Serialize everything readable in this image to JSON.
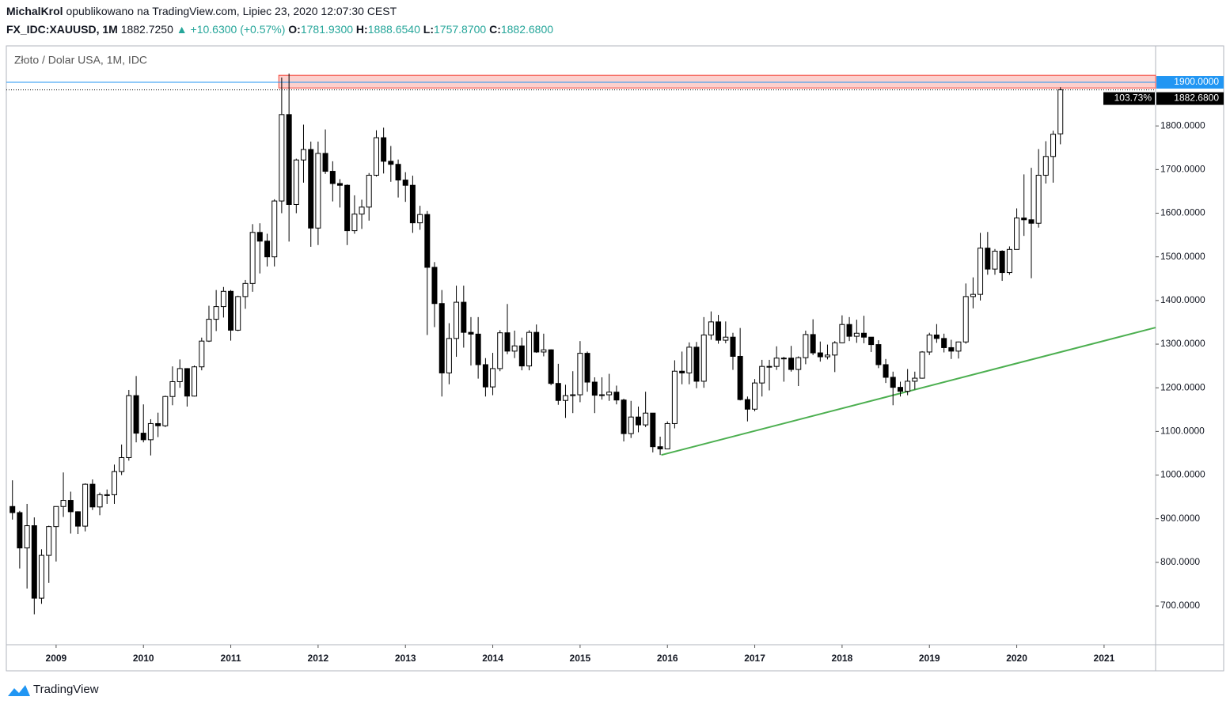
{
  "header": {
    "author": "MichalKrol",
    "published": "opublikowano na TradingView.com, Lipiec 23, 2020 12:07:30 CEST",
    "symbol": "FX_IDC:XAUUSD, 1M",
    "price": "1882.7250",
    "change": "+10.6300 (+0.57%)",
    "ohlc": [
      {
        "label": "O:",
        "value": "1781.9300"
      },
      {
        "label": "H:",
        "value": "1888.6540"
      },
      {
        "label": "L:",
        "value": "1757.8700"
      },
      {
        "label": "C:",
        "value": "1882.6800"
      }
    ]
  },
  "footer": {
    "brand": "TradingView"
  },
  "chart_data": {
    "type": "candlestick",
    "title": "Złoto / Dolar USA, 1M, IDC",
    "up_color": "#ffffff",
    "down_color": "#000000",
    "wick_color": "#000000",
    "grid": false,
    "xlim": [
      2008.43,
      2021.59
    ],
    "xticks": [
      2009,
      2010,
      2011,
      2012,
      2013,
      2014,
      2015,
      2016,
      2017,
      2018,
      2019,
      2020,
      2021
    ],
    "ylim": [
      611.3,
      1983.4
    ],
    "yticks": [
      {
        "value": 700,
        "label": "700.0000"
      },
      {
        "value": 800,
        "label": "800.0000"
      },
      {
        "value": 900,
        "label": "900.0000"
      },
      {
        "value": 1000,
        "label": "1000.0000"
      },
      {
        "value": 1100,
        "label": "1100.0000"
      },
      {
        "value": 1200,
        "label": "1200.0000"
      },
      {
        "value": 1300,
        "label": "1300.0000"
      },
      {
        "value": 1400,
        "label": "1400.0000"
      },
      {
        "value": 1500,
        "label": "1500.0000"
      },
      {
        "value": 1600,
        "label": "1600.0000"
      },
      {
        "value": 1700,
        "label": "1700.0000"
      },
      {
        "value": 1800,
        "label": "1800.0000"
      }
    ],
    "x": [
      2008.5,
      2008.583,
      2008.667,
      2008.75,
      2008.833,
      2008.917,
      2009,
      2009.083,
      2009.167,
      2009.25,
      2009.333,
      2009.417,
      2009.5,
      2009.583,
      2009.667,
      2009.75,
      2009.833,
      2009.917,
      2010,
      2010.083,
      2010.167,
      2010.25,
      2010.333,
      2010.417,
      2010.5,
      2010.583,
      2010.667,
      2010.75,
      2010.833,
      2010.917,
      2011,
      2011.083,
      2011.167,
      2011.25,
      2011.333,
      2011.417,
      2011.5,
      2011.583,
      2011.667,
      2011.75,
      2011.833,
      2011.917,
      2012,
      2012.083,
      2012.167,
      2012.25,
      2012.333,
      2012.417,
      2012.5,
      2012.583,
      2012.667,
      2012.75,
      2012.833,
      2012.917,
      2013,
      2013.083,
      2013.167,
      2013.25,
      2013.333,
      2013.417,
      2013.5,
      2013.583,
      2013.667,
      2013.75,
      2013.833,
      2013.917,
      2014,
      2014.083,
      2014.167,
      2014.25,
      2014.333,
      2014.417,
      2014.5,
      2014.583,
      2014.667,
      2014.75,
      2014.833,
      2014.917,
      2015,
      2015.083,
      2015.167,
      2015.25,
      2015.333,
      2015.417,
      2015.5,
      2015.583,
      2015.667,
      2015.75,
      2015.833,
      2015.917,
      2016,
      2016.083,
      2016.167,
      2016.25,
      2016.333,
      2016.417,
      2016.5,
      2016.583,
      2016.667,
      2016.75,
      2016.833,
      2016.917,
      2017,
      2017.083,
      2017.167,
      2017.25,
      2017.333,
      2017.417,
      2017.5,
      2017.583,
      2017.667,
      2017.75,
      2017.833,
      2017.917,
      2018,
      2018.083,
      2018.167,
      2018.25,
      2018.333,
      2018.417,
      2018.5,
      2018.583,
      2018.667,
      2018.75,
      2018.833,
      2018.917,
      2019,
      2019.083,
      2019.167,
      2019.25,
      2019.333,
      2019.417,
      2019.5,
      2019.583,
      2019.667,
      2019.75,
      2019.833,
      2019.917,
      2020,
      2020.083,
      2020.167,
      2020.25,
      2020.333,
      2020.417,
      2020.5
    ],
    "open": [
      928,
      914,
      833,
      884,
      718,
      816,
      882,
      928,
      942,
      916,
      883,
      979,
      927,
      955,
      955,
      1008,
      1040,
      1182,
      1096,
      1081,
      1118,
      1113,
      1180,
      1214,
      1244,
      1181,
      1248,
      1307,
      1357,
      1386,
      1421,
      1332,
      1409,
      1439,
      1556,
      1536,
      1500,
      1628,
      1826,
      1620,
      1722,
      1746,
      1566,
      1737,
      1696,
      1668,
      1664,
      1560,
      1598,
      1614,
      1687,
      1773,
      1719,
      1712,
      1676,
      1664,
      1578,
      1597,
      1476,
      1393,
      1234,
      1313,
      1396,
      1327,
      1323,
      1253,
      1202,
      1244,
      1326,
      1284,
      1296,
      1250,
      1327,
      1282,
      1287,
      1210,
      1171,
      1182,
      1184,
      1279,
      1213,
      1183,
      1184,
      1190,
      1172,
      1095,
      1133,
      1115,
      1142,
      1065,
      1060,
      1118,
      1238,
      1234,
      1293,
      1215,
      1321,
      1351,
      1309,
      1316,
      1272,
      1173,
      1151,
      1211,
      1249,
      1249,
      1268,
      1268,
      1242,
      1269,
      1322,
      1280,
      1271,
      1275,
      1303,
      1345,
      1318,
      1325,
      1316,
      1299,
      1253,
      1224,
      1201,
      1192,
      1215,
      1222,
      1282,
      1321,
      1313,
      1292,
      1284,
      1305,
      1409,
      1414,
      1520,
      1472,
      1513,
      1464,
      1517,
      1589,
      1585,
      1577,
      1687,
      1730,
      1781.93
    ],
    "high": [
      988,
      918,
      934,
      903,
      830,
      884,
      928,
      1006,
      962,
      917,
      981,
      990,
      960,
      967,
      1024,
      1070,
      1195,
      1227,
      1162,
      1128,
      1143,
      1182,
      1249,
      1265,
      1245,
      1251,
      1315,
      1388,
      1424,
      1431,
      1424,
      1411,
      1447,
      1575,
      1577,
      1553,
      1632,
      1911,
      1920,
      1725,
      1803,
      1764,
      1764,
      1792,
      1719,
      1678,
      1666,
      1641,
      1631,
      1692,
      1790,
      1796,
      1754,
      1723,
      1694,
      1686,
      1617,
      1605,
      1488,
      1424,
      1348,
      1434,
      1434,
      1362,
      1362,
      1268,
      1280,
      1332,
      1392,
      1331,
      1315,
      1332,
      1345,
      1324,
      1288,
      1255,
      1207,
      1238,
      1307,
      1283,
      1224,
      1224,
      1232,
      1205,
      1175,
      1170,
      1157,
      1191,
      1142,
      1088,
      1123,
      1263,
      1283,
      1304,
      1305,
      1362,
      1375,
      1367,
      1352,
      1326,
      1337,
      1180,
      1220,
      1264,
      1264,
      1295,
      1271,
      1296,
      1272,
      1331,
      1357,
      1306,
      1299,
      1307,
      1366,
      1362,
      1356,
      1365,
      1316,
      1309,
      1266,
      1237,
      1214,
      1243,
      1237,
      1284,
      1326,
      1346,
      1324,
      1310,
      1306,
      1439,
      1453,
      1555,
      1557,
      1518,
      1515,
      1524,
      1611,
      1689,
      1704,
      1747,
      1765,
      1789,
      1888.654
    ],
    "low": [
      898,
      786,
      740,
      681,
      705,
      753,
      802,
      904,
      866,
      865,
      871,
      920,
      908,
      934,
      934,
      1000,
      1033,
      1075,
      1075,
      1045,
      1087,
      1110,
      1160,
      1200,
      1157,
      1180,
      1240,
      1305,
      1330,
      1361,
      1308,
      1330,
      1381,
      1420,
      1462,
      1478,
      1478,
      1600,
      1535,
      1600,
      1670,
      1523,
      1527,
      1690,
      1627,
      1613,
      1527,
      1553,
      1564,
      1583,
      1684,
      1691,
      1672,
      1636,
      1626,
      1555,
      1562,
      1321,
      1339,
      1180,
      1208,
      1271,
      1292,
      1251,
      1221,
      1180,
      1183,
      1238,
      1277,
      1268,
      1240,
      1240,
      1280,
      1272,
      1206,
      1161,
      1131,
      1142,
      1167,
      1191,
      1142,
      1173,
      1170,
      1162,
      1077,
      1085,
      1098,
      1110,
      1052,
      1046,
      1061,
      1107,
      1208,
      1208,
      1199,
      1200,
      1310,
      1301,
      1302,
      1241,
      1171,
      1123,
      1146,
      1180,
      1194,
      1241,
      1214,
      1237,
      1204,
      1254,
      1275,
      1260,
      1265,
      1236,
      1302,
      1307,
      1303,
      1302,
      1282,
      1245,
      1211,
      1160,
      1180,
      1183,
      1196,
      1221,
      1275,
      1303,
      1281,
      1266,
      1267,
      1301,
      1382,
      1400,
      1459,
      1459,
      1445,
      1459,
      1517,
      1548,
      1451,
      1567,
      1668,
      1670,
      1757.87
    ],
    "close": [
      914,
      833,
      884,
      718,
      816,
      882,
      928,
      942,
      916,
      883,
      979,
      927,
      955,
      955,
      1008,
      1040,
      1182,
      1096,
      1081,
      1118,
      1113,
      1180,
      1214,
      1244,
      1181,
      1248,
      1307,
      1357,
      1386,
      1421,
      1332,
      1409,
      1439,
      1556,
      1536,
      1500,
      1628,
      1826,
      1620,
      1722,
      1746,
      1566,
      1737,
      1696,
      1668,
      1664,
      1560,
      1598,
      1614,
      1687,
      1773,
      1719,
      1712,
      1676,
      1664,
      1578,
      1597,
      1476,
      1393,
      1234,
      1313,
      1396,
      1327,
      1323,
      1253,
      1202,
      1244,
      1326,
      1284,
      1296,
      1250,
      1327,
      1282,
      1287,
      1210,
      1171,
      1182,
      1184,
      1279,
      1213,
      1183,
      1184,
      1190,
      1172,
      1095,
      1133,
      1115,
      1142,
      1065,
      1060,
      1118,
      1238,
      1234,
      1293,
      1215,
      1321,
      1351,
      1309,
      1316,
      1272,
      1173,
      1151,
      1211,
      1249,
      1249,
      1268,
      1268,
      1242,
      1269,
      1322,
      1280,
      1271,
      1275,
      1303,
      1345,
      1318,
      1325,
      1316,
      1299,
      1253,
      1224,
      1201,
      1192,
      1215,
      1222,
      1282,
      1321,
      1313,
      1292,
      1284,
      1305,
      1409,
      1414,
      1520,
      1472,
      1513,
      1464,
      1517,
      1589,
      1585,
      1577,
      1687,
      1730,
      1781,
      1882.68
    ],
    "zone": {
      "x_start": 2011.55,
      "ylim": [
        1887,
        1916
      ],
      "color": "#f44336"
    },
    "hline": {
      "value": 1900,
      "label": "1900.0000",
      "color": "#2196f3"
    },
    "last_price": {
      "value": 1882.68,
      "label": "1882.6800",
      "change_label": "103.73%",
      "color": "#000000"
    },
    "trendline": {
      "x": [
        2015.93,
        2021.59
      ],
      "y": [
        1046,
        1338
      ],
      "color": "#4caf50"
    }
  }
}
